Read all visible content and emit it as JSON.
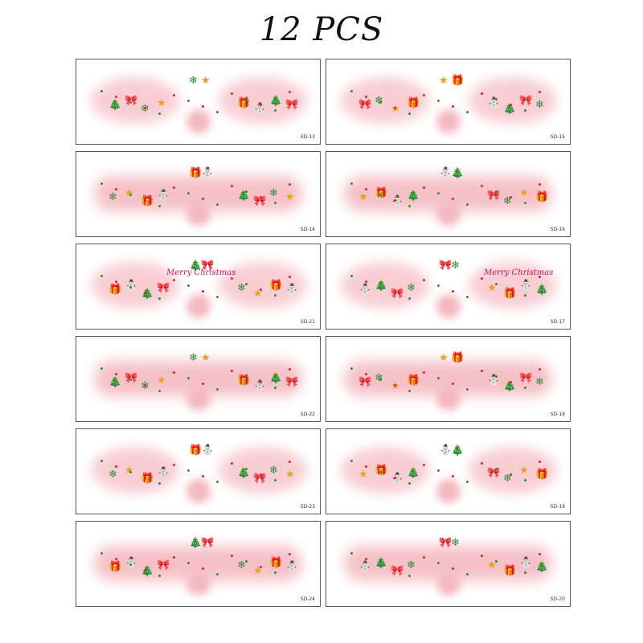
{
  "title": "12 PCS",
  "colors": {
    "pink": "#f5c1c7",
    "red": "#d8242c",
    "green": "#2e8b3e",
    "border": "#555555"
  },
  "cards": [
    {
      "code": "SD-13"
    },
    {
      "code": "SD-15"
    },
    {
      "code": "SD-14"
    },
    {
      "code": "SD-16"
    },
    {
      "code": "SD-21"
    },
    {
      "code": "SD-17"
    },
    {
      "code": "SD-22"
    },
    {
      "code": "SD-18"
    },
    {
      "code": "SD-23"
    },
    {
      "code": "SD-19"
    },
    {
      "code": "SD-24"
    },
    {
      "code": "SD-20"
    }
  ],
  "card_text": {
    "merry_christmas": "Merry Christmas"
  }
}
